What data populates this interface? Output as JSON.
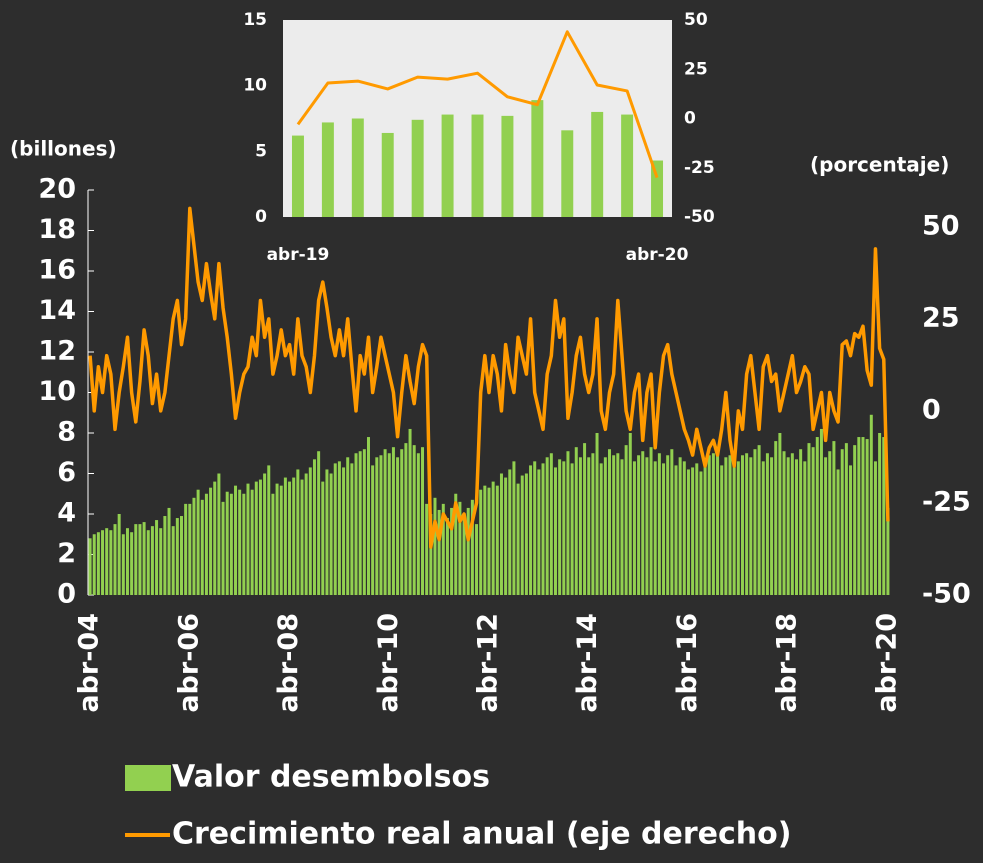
{
  "chart_data": [
    {
      "type": "combo",
      "y_label": "(billones)",
      "y2_label": "(porcentaje)",
      "categories": [
        "abr-04",
        null,
        null,
        null,
        null,
        null,
        null,
        null,
        null,
        null,
        null,
        null,
        null,
        null,
        null,
        null,
        null,
        null,
        null,
        null,
        null,
        null,
        null,
        null,
        "abr-06",
        null,
        null,
        null,
        null,
        null,
        null,
        null,
        null,
        null,
        null,
        null,
        null,
        null,
        null,
        null,
        null,
        null,
        null,
        null,
        null,
        null,
        null,
        null,
        "abr-08",
        null,
        null,
        null,
        null,
        null,
        null,
        null,
        null,
        null,
        null,
        null,
        null,
        null,
        null,
        null,
        null,
        null,
        null,
        null,
        null,
        null,
        null,
        null,
        "abr-10",
        null,
        null,
        null,
        null,
        null,
        null,
        null,
        null,
        null,
        null,
        null,
        null,
        null,
        null,
        null,
        null,
        null,
        null,
        null,
        null,
        null,
        null,
        null,
        "abr-12",
        null,
        null,
        null,
        null,
        null,
        null,
        null,
        null,
        null,
        null,
        null,
        null,
        null,
        null,
        null,
        null,
        null,
        null,
        null,
        null,
        null,
        null,
        null,
        "abr-14",
        null,
        null,
        null,
        null,
        null,
        null,
        null,
        null,
        null,
        null,
        null,
        null,
        null,
        null,
        null,
        null,
        null,
        null,
        null,
        null,
        null,
        null,
        null,
        "abr-16",
        null,
        null,
        null,
        null,
        null,
        null,
        null,
        null,
        null,
        null,
        null,
        null,
        null,
        null,
        null,
        null,
        null,
        null,
        null,
        null,
        null,
        null,
        null,
        "abr-18",
        null,
        null,
        null,
        null,
        null,
        null,
        null,
        null,
        null,
        null,
        null,
        null,
        null,
        null,
        null,
        null,
        null,
        null,
        null,
        null,
        null,
        null,
        null,
        "abr-20"
      ],
      "series": [
        {
          "name": "Valor desembolsos",
          "type": "bar",
          "color": "#92d050",
          "values": [
            2.8,
            3.0,
            3.1,
            3.2,
            3.3,
            3.2,
            3.5,
            4.0,
            3.0,
            3.3,
            3.1,
            3.5,
            3.5,
            3.6,
            3.2,
            3.4,
            3.7,
            3.3,
            3.9,
            4.3,
            3.4,
            3.8,
            3.9,
            4.5,
            4.5,
            4.8,
            5.2,
            4.7,
            5.0,
            5.3,
            5.6,
            6.0,
            4.6,
            5.1,
            5.0,
            5.4,
            5.2,
            5.0,
            5.5,
            5.2,
            5.6,
            5.7,
            6.0,
            6.4,
            5.0,
            5.5,
            5.4,
            5.8,
            5.6,
            5.8,
            6.2,
            5.7,
            6.0,
            6.3,
            6.7,
            7.1,
            5.6,
            6.2,
            6.0,
            6.5,
            6.6,
            6.3,
            6.8,
            6.5,
            7.0,
            7.1,
            7.2,
            7.8,
            6.4,
            6.8,
            6.9,
            7.2,
            7.0,
            7.3,
            6.8,
            7.2,
            7.5,
            8.2,
            7.4,
            7.0,
            7.3,
            4.5,
            4.0,
            4.8,
            4.2,
            4.5,
            3.8,
            4.3,
            5.0,
            4.6,
            3.9,
            4.3,
            4.7,
            3.5,
            5.2,
            5.4,
            5.3,
            5.6,
            5.4,
            6.0,
            5.8,
            6.2,
            6.6,
            5.5,
            5.9,
            6.0,
            6.4,
            6.6,
            6.2,
            6.5,
            6.8,
            7.0,
            6.3,
            6.7,
            6.6,
            7.1,
            6.5,
            7.3,
            6.8,
            7.5,
            6.8,
            7.0,
            8.0,
            6.5,
            6.8,
            7.2,
            6.9,
            7.0,
            6.7,
            7.4,
            8.0,
            6.6,
            6.9,
            7.1,
            6.8,
            7.3,
            6.6,
            7.0,
            6.5,
            6.9,
            7.2,
            6.4,
            6.8,
            6.6,
            6.2,
            6.3,
            6.5,
            6.1,
            6.6,
            6.9,
            7.0,
            7.2,
            6.4,
            6.8,
            6.9,
            7.1,
            6.6,
            6.9,
            7.0,
            6.8,
            7.2,
            7.4,
            6.6,
            7.0,
            6.8,
            7.6,
            8.0,
            7.1,
            6.8,
            7.0,
            6.7,
            7.2,
            6.6,
            7.5,
            7.3,
            7.8,
            8.2,
            6.8,
            7.1,
            7.6,
            6.2,
            7.2,
            7.5,
            6.4,
            7.4,
            7.8,
            7.8,
            7.7,
            8.9,
            6.6,
            8.0,
            7.8,
            4.3
          ]
        },
        {
          "name": "Crecimiento real anual (eje derecho)",
          "type": "line",
          "axis": "y2",
          "color": "#ff9a00",
          "values": [
            15,
            0,
            12,
            5,
            15,
            10,
            -5,
            5,
            12,
            20,
            5,
            -3,
            8,
            22,
            15,
            2,
            10,
            0,
            5,
            15,
            25,
            30,
            18,
            25,
            55,
            45,
            35,
            30,
            40,
            32,
            25,
            40,
            28,
            20,
            10,
            -2,
            5,
            10,
            12,
            20,
            15,
            30,
            20,
            25,
            10,
            15,
            22,
            15,
            18,
            10,
            25,
            15,
            12,
            5,
            15,
            30,
            35,
            28,
            20,
            15,
            22,
            15,
            25,
            12,
            0,
            15,
            10,
            20,
            5,
            12,
            20,
            15,
            10,
            5,
            -7,
            5,
            15,
            8,
            2,
            12,
            18,
            15,
            -37,
            -30,
            -35,
            -28,
            -30,
            -32,
            -25,
            -30,
            -28,
            -35,
            -30,
            -25,
            5,
            15,
            5,
            15,
            10,
            0,
            18,
            10,
            5,
            20,
            15,
            10,
            25,
            5,
            0,
            -5,
            10,
            15,
            30,
            20,
            25,
            -2,
            5,
            15,
            20,
            10,
            5,
            10,
            25,
            0,
            -5,
            5,
            10,
            30,
            15,
            0,
            -5,
            5,
            10,
            -8,
            5,
            10,
            -10,
            5,
            15,
            18,
            10,
            5,
            0,
            -5,
            -8,
            -12,
            -5,
            -10,
            -15,
            -10,
            -8,
            -12,
            -5,
            5,
            -8,
            -15,
            0,
            -5,
            10,
            15,
            5,
            -5,
            12,
            15,
            8,
            10,
            0,
            5,
            10,
            15,
            5,
            8,
            12,
            10,
            -5,
            0,
            5,
            -8,
            5,
            0,
            -3,
            18,
            19,
            15,
            21,
            20,
            23,
            11,
            7,
            44,
            17,
            14,
            -30
          ]
        }
      ],
      "ylim": [
        0,
        20
      ],
      "yticks": [
        0,
        2,
        4,
        6,
        8,
        10,
        12,
        14,
        16,
        18,
        20
      ],
      "y2lim": [
        -50,
        60
      ],
      "y2ticks": [
        -50,
        -25,
        0,
        25,
        50
      ],
      "legend": "bottom"
    },
    {
      "type": "combo",
      "categories": [
        "abr-19",
        null,
        null,
        null,
        null,
        null,
        null,
        null,
        null,
        null,
        null,
        null,
        "abr-20"
      ],
      "series": [
        {
          "type": "bar",
          "color": "#92d050",
          "values": [
            6.2,
            7.2,
            7.5,
            6.4,
            7.4,
            7.8,
            7.8,
            7.7,
            8.9,
            6.6,
            8.0,
            7.8,
            4.3
          ]
        },
        {
          "type": "line",
          "axis": "y2",
          "color": "#ff9a00",
          "values": [
            -3,
            18,
            19,
            15,
            21,
            20,
            23,
            11,
            7,
            44,
            17,
            14,
            -30
          ]
        }
      ],
      "ylim": [
        0,
        15
      ],
      "yticks": [
        0,
        5,
        10,
        15
      ],
      "y2lim": [
        -50,
        50
      ],
      "y2ticks": [
        -50,
        -25,
        0,
        25,
        50
      ],
      "background": "#ececec"
    }
  ]
}
